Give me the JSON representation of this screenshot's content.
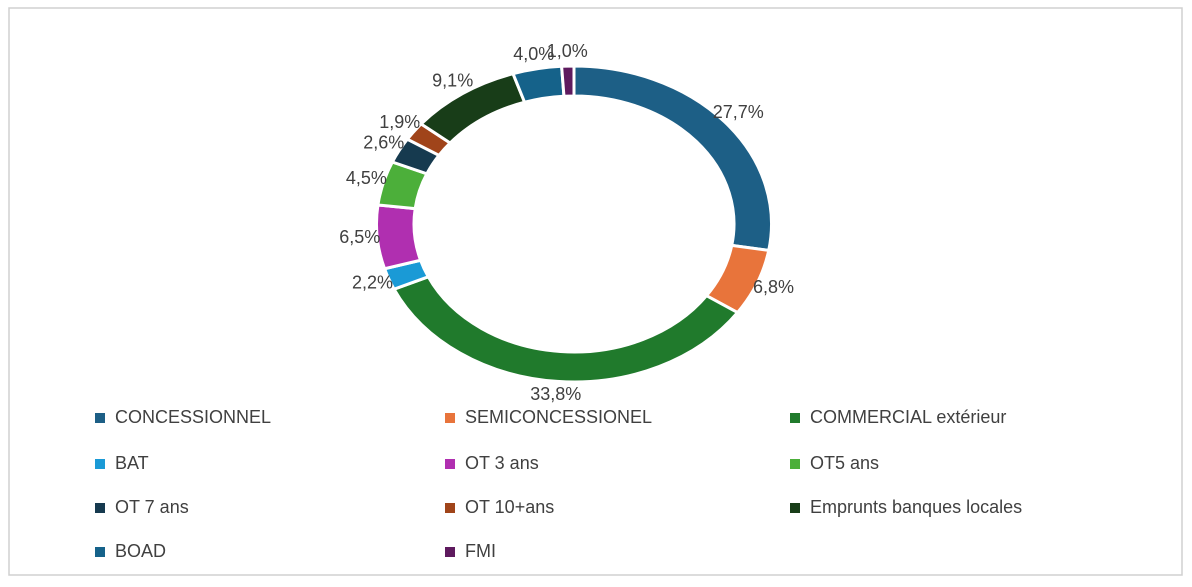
{
  "chart_data": {
    "type": "donut",
    "categories": [
      "CONCESSIONNEL",
      "SEMICONCESSIONEL",
      "COMMERCIAL extérieur",
      "BAT",
      "OT 3 ans",
      "OT5 ans",
      "OT 7 ans",
      "OT 10+ans",
      "Emprunts banques locales",
      "BOAD",
      "FMI"
    ],
    "values": [
      27.7,
      6.8,
      33.8,
      2.2,
      6.5,
      4.5,
      2.6,
      1.9,
      9.1,
      4.0,
      1.0
    ],
    "value_labels": [
      "27,7%",
      "6,8%",
      "33,8%",
      "2,2%",
      "6,5%",
      "4,5%",
      "2,6%",
      "1,9%",
      "9,1%",
      "4,0%",
      "1,0%"
    ],
    "colors": [
      "#1d5f86",
      "#e8743b",
      "#207a2c",
      "#1a9ad6",
      "#b02fb0",
      "#4caf3a",
      "#163a4f",
      "#a0441a",
      "#183d18",
      "#15628a",
      "#5e1a5e"
    ],
    "legend": "bottom"
  }
}
